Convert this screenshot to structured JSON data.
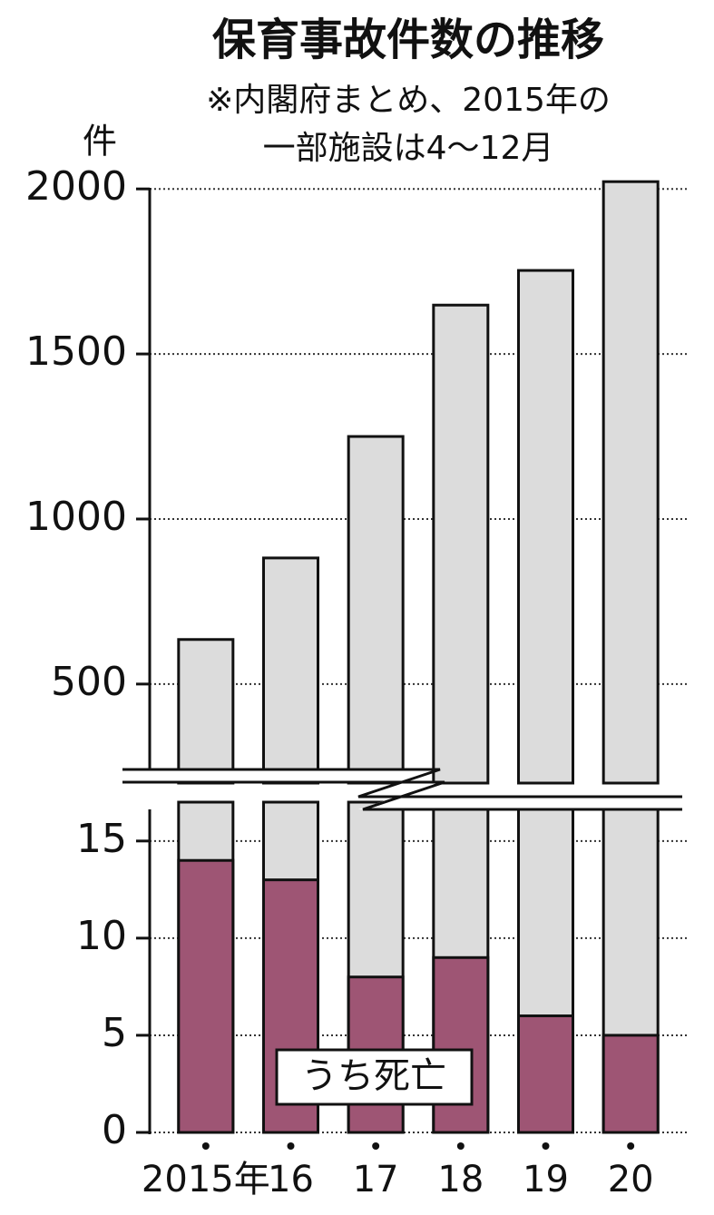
{
  "chart_data": [
    {
      "type": "bar",
      "title": "保育事故件数の推移",
      "subtitle": [
        "※内閣府まとめ、2015年の",
        "一部施設は4～12月"
      ],
      "y_label": "件",
      "values": [
        635,
        882,
        1250,
        1648,
        1753,
        2022
      ],
      "color": "#dcdcdc",
      "ylim": [
        200,
        2050
      ],
      "yticks": [
        500,
        1000,
        1500,
        2000
      ],
      "grid": true
    },
    {
      "type": "bar",
      "categories": [
        "2015年",
        "16",
        "17",
        "18",
        "19",
        "20"
      ],
      "values": [
        14,
        13,
        8,
        9,
        6,
        5
      ],
      "color": "#9e5574",
      "annotation": "うち死亡",
      "ylim": [
        0,
        17
      ],
      "yticks": [
        0,
        5,
        10,
        15
      ],
      "grid": true
    }
  ]
}
